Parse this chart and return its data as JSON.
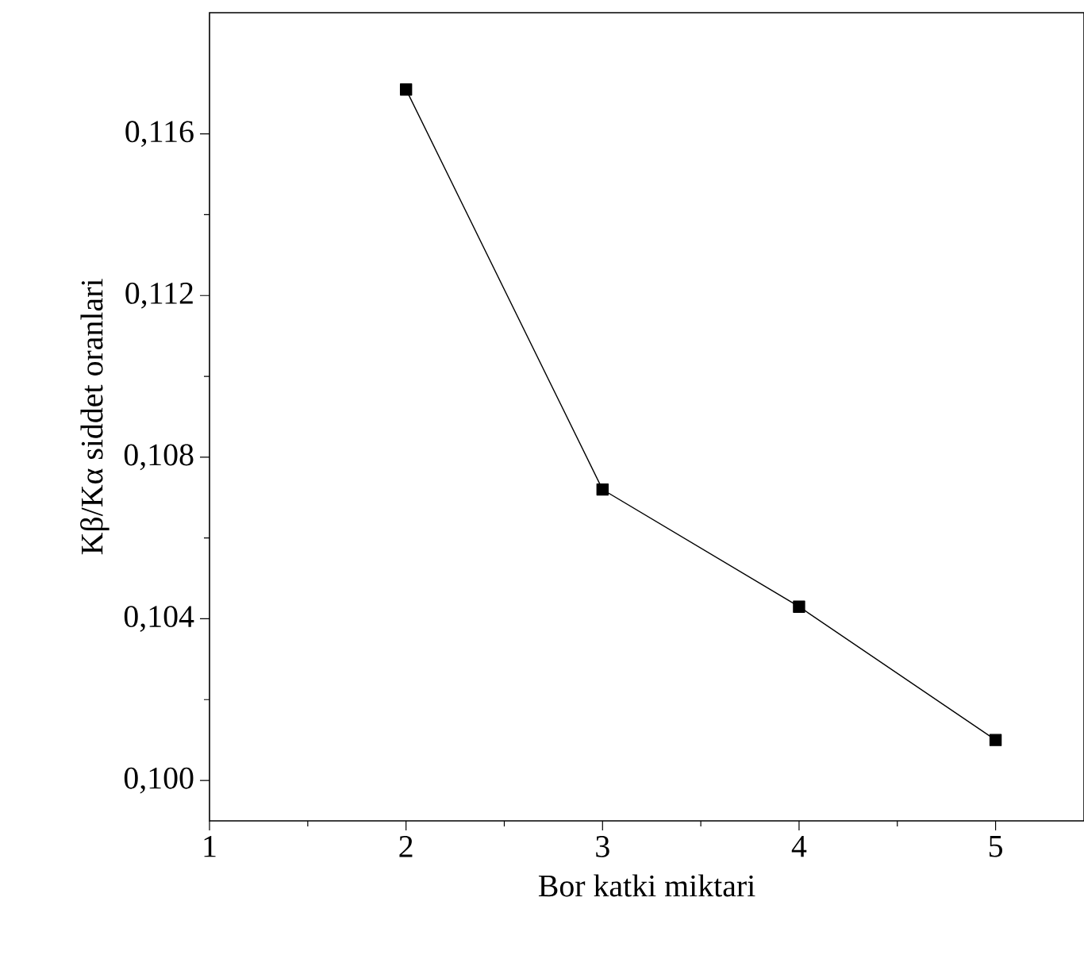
{
  "chart_data": {
    "type": "line",
    "xlabel": "Bor katki miktari",
    "ylabel": "Kβ/Kα siddet oranlari",
    "x": [
      2,
      3,
      4,
      5
    ],
    "values": [
      0.1171,
      0.1072,
      0.1043,
      0.101
    ],
    "color": "#000000",
    "marker": "square",
    "line_style": "solid",
    "xlim": [
      1,
      5.45
    ],
    "ylim": [
      0.099,
      0.119
    ],
    "xticks": [
      1,
      2,
      3,
      4,
      5
    ],
    "yticks": [
      {
        "value": 0.1,
        "label": "0,100"
      },
      {
        "value": 0.104,
        "label": "0,104"
      },
      {
        "value": 0.108,
        "label": "0,108"
      },
      {
        "value": 0.112,
        "label": "0,112"
      },
      {
        "value": 0.116,
        "label": "0,116"
      }
    ],
    "grid": false
  }
}
